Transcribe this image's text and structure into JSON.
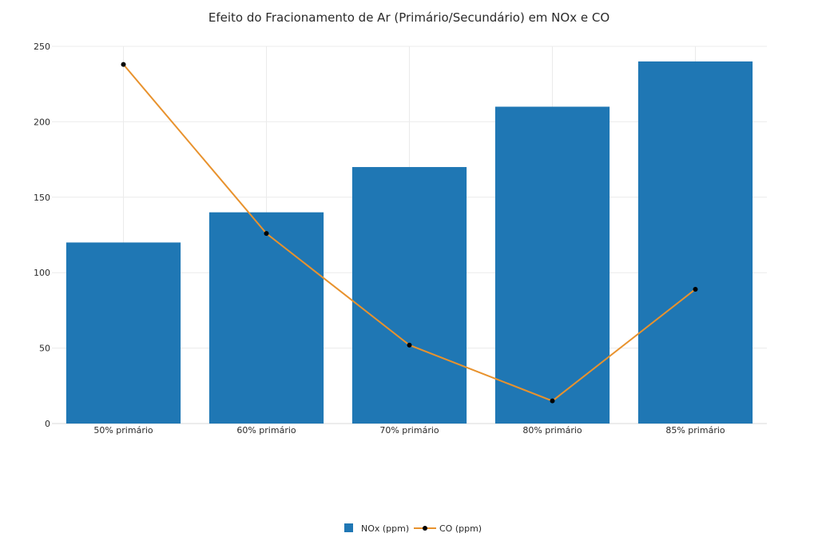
{
  "chart_data": {
    "type": "bar",
    "title": "Efeito do Fracionamento de Ar (Primário/Secundário) em NOx e CO",
    "xlabel": "",
    "ylabel": "",
    "categories": [
      "50% primário",
      "60% primário",
      "70% primário",
      "80% primário",
      "85% primário"
    ],
    "ylim": [
      0,
      250
    ],
    "yticks": [
      0,
      50,
      100,
      150,
      200,
      250
    ],
    "grid": true,
    "legend_position": "bottom-center",
    "series": [
      {
        "name": "NOx (ppm)",
        "type": "bar",
        "color": "#1f77b4",
        "values": [
          120,
          140,
          170,
          210,
          240
        ]
      },
      {
        "name": "CO (ppm)",
        "type": "line",
        "color": "#e8922d",
        "marker_color": "#000000",
        "values": [
          238,
          126,
          52,
          15,
          89
        ]
      }
    ]
  }
}
